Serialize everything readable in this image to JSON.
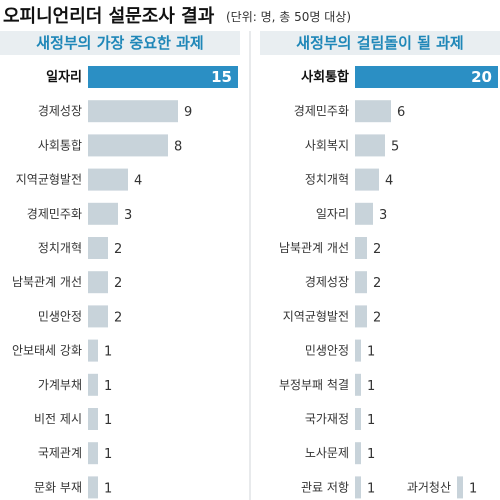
{
  "title": "오피니언리더 설문조사 결과",
  "subtitle": "(단위: 명, 총 50명 대상)",
  "colors": {
    "highlight": "#2b8fc4",
    "bar": "#c8d3da",
    "header_bg": "#e9eef1",
    "header_text": "#1f87b8"
  },
  "chart_data": [
    {
      "type": "bar",
      "orientation": "horizontal",
      "title": "새정부의 가장 중요한 과제",
      "categories": [
        "일자리",
        "경제성장",
        "사회통합",
        "지역균형발전",
        "경제민주화",
        "정치개혁",
        "남북관계 개선",
        "민생안정",
        "안보태세 강화",
        "가계부채",
        "비전 제시",
        "국제관계",
        "문화 부재"
      ],
      "values": [
        15,
        9,
        8,
        4,
        3,
        2,
        2,
        2,
        1,
        1,
        1,
        1,
        1
      ],
      "highlight_index": 0
    },
    {
      "type": "bar",
      "orientation": "horizontal",
      "title": "새정부의 걸림돌이 될 과제",
      "categories": [
        "사회통합",
        "경제민주화",
        "사회복지",
        "정치개혁",
        "일자리",
        "남북관계 개선",
        "경제성장",
        "지역균형발전",
        "민생안정",
        "부정부패 척결",
        "국가재정",
        "노사문제",
        "관료 저항",
        "과거청산"
      ],
      "values": [
        20,
        6,
        5,
        4,
        3,
        2,
        2,
        2,
        1,
        1,
        1,
        1,
        1,
        1
      ],
      "highlight_index": 0
    }
  ]
}
